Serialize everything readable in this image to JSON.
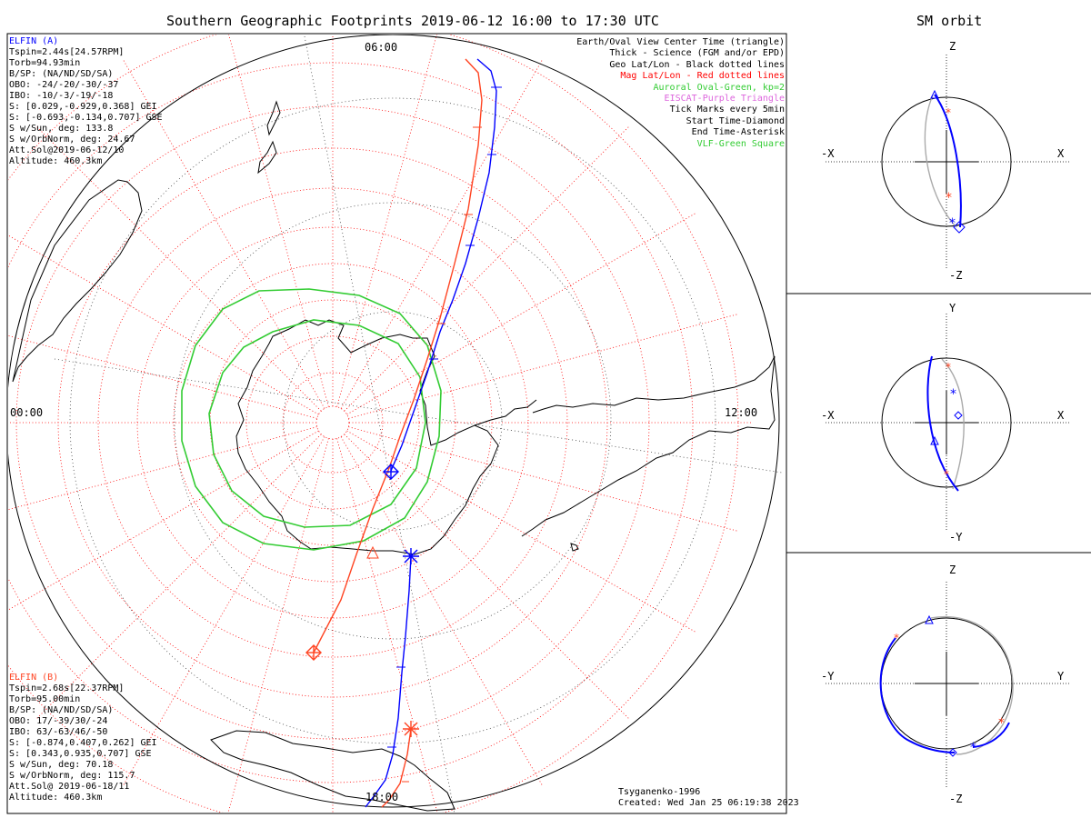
{
  "titles": {
    "main": "Southern Geographic Footprints 2019-06-12 16:00 to 17:30 UTC",
    "side": "SM orbit"
  },
  "colors": {
    "elfin_a": "#0000ff",
    "elfin_b": "#ff4422",
    "mag_grid": "#ff0000",
    "oval": "#33cc33",
    "eiscat": "#dd66dd",
    "orbit_gray": "#999999"
  },
  "elfin_a": {
    "name": "ELFIN (A)",
    "lines": [
      "Tspin=2.44s[24.57RPM]",
      "Torb=94.93min",
      "B/SP: (NA/ND/SD/SA)",
      "OBO: -24/-20/-30/-37",
      "IBO: -10/-3/-19/-18",
      "S: [0.029,-0.929,0.368] GEI",
      "S: [-0.693,-0.134,0.707] GSE",
      "S w/Sun, deg: 133.8",
      "S w/OrbNorm, deg: 24.67",
      "Att.Sol@2019-06-12/10",
      "Altitude: 460.3km"
    ]
  },
  "elfin_b": {
    "name": "ELFIN (B)",
    "lines": [
      "Tspin=2.68s[22.37RPM]",
      "Torb=95.00min",
      "B/SP: (NA/ND/SD/SA)",
      "OBO: 17/-39/30/-24",
      "IBO: 63/-63/46/-50",
      "S: [-0.874,0.407,0.262] GEI",
      "S: [0.343,0.935,0.707] GSE",
      "S w/Sun, deg: 70.18",
      "S w/OrbNorm, deg: 115.7",
      "Att.Sol@ 2019-06-18/11",
      "Altitude: 460.3km"
    ]
  },
  "legend": [
    {
      "text": "Earth/Oval View Center Time (triangle)",
      "color": "#000000"
    },
    {
      "text": "Thick - Science (FGM and/or EPD)",
      "color": "#000000"
    },
    {
      "text": "Geo Lat/Lon - Black dotted lines",
      "color": "#000000"
    },
    {
      "text": "Mag Lat/Lon - Red dotted lines",
      "color": "#ff0000"
    },
    {
      "text": "Auroral Oval-Green, kp=2",
      "color": "#33cc33"
    },
    {
      "text": "EISCAT-Purple Triangle",
      "color": "#dd66dd"
    },
    {
      "text": "Tick Marks every 5min",
      "color": "#000000"
    },
    {
      "text": "Start Time-Diamond",
      "color": "#000000"
    },
    {
      "text": "End Time-Asterisk",
      "color": "#000000"
    },
    {
      "text": "VLF-Green Square",
      "color": "#33cc33"
    }
  ],
  "mlt_labels": {
    "top": "06:00",
    "left": "00:00",
    "right": "12:00",
    "bottom": "18:00"
  },
  "credits": {
    "model": "Tsyganenko-1996",
    "created": "Created: Wed Jan 25 06:19:38 2023"
  },
  "panels": [
    {
      "top": "Z",
      "bottom": "-Z",
      "left": "-X",
      "right": "X"
    },
    {
      "top": "Y",
      "bottom": "-Y",
      "left": "-X",
      "right": "X"
    },
    {
      "top": "Z",
      "bottom": "-Z",
      "left": "-Y",
      "right": "Y"
    }
  ]
}
